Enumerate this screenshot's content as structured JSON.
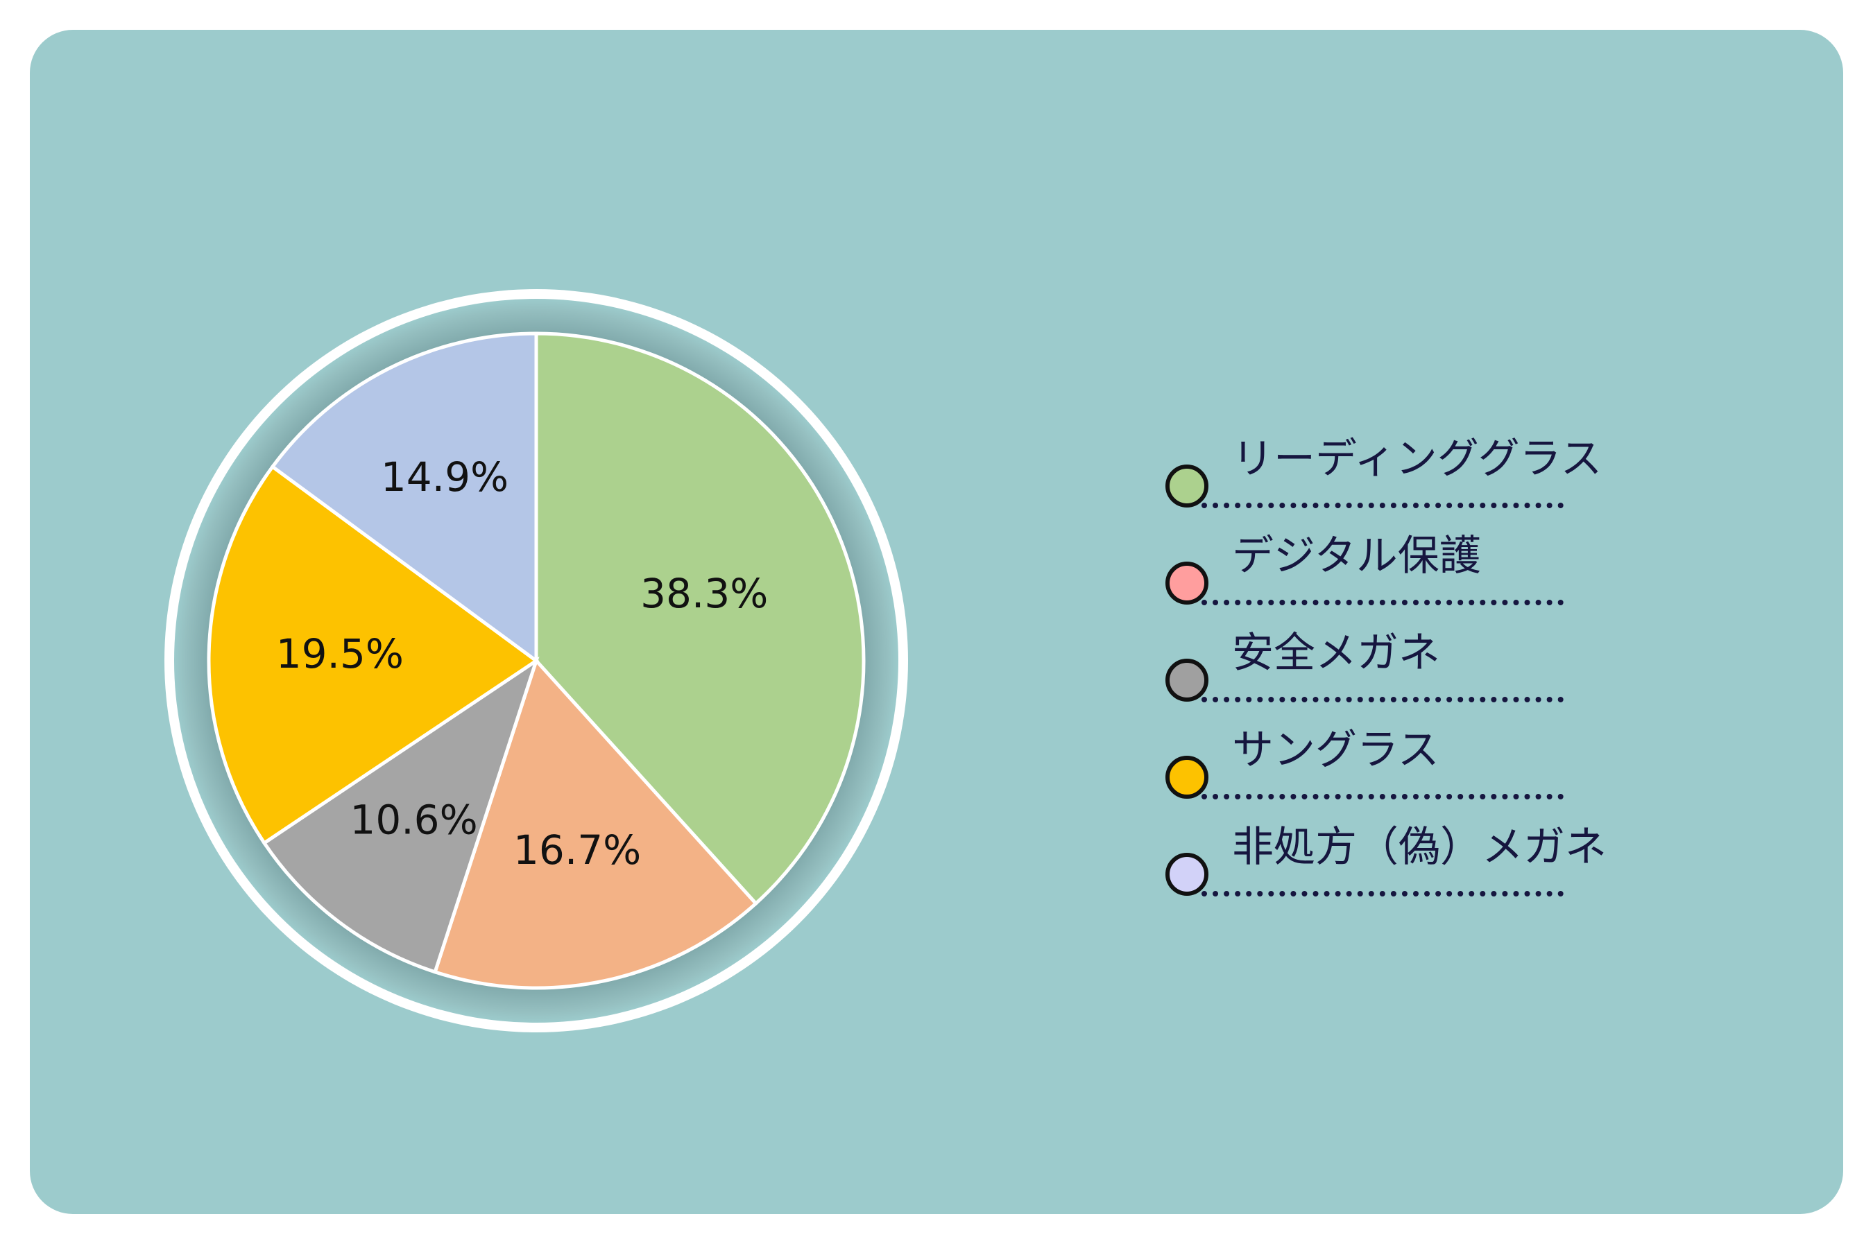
{
  "chart_data": {
    "type": "pie",
    "slices": [
      {
        "label": "リーディンググラス",
        "value": 38.3,
        "display": "38.3%",
        "color": "#acd18e"
      },
      {
        "label": "デジタル保護",
        "value": 16.7,
        "display": "16.7%",
        "color": "#f3b286"
      },
      {
        "label": "安全メガネ",
        "value": 10.6,
        "display": "10.6%",
        "color": "#a5a5a5"
      },
      {
        "label": "サングラス",
        "value": 19.5,
        "display": "19.5%",
        "color": "#fdc200"
      },
      {
        "label": "非処方（偽）メガネ",
        "value": 14.9,
        "display": "14.9%",
        "color": "#b4c6e7"
      }
    ],
    "legend": {
      "position": "right",
      "items": [
        {
          "label": "リーディンググラス",
          "color": "#acd18e"
        },
        {
          "label": "デジタル保護",
          "color": "#ff9e9e"
        },
        {
          "label": "安全メガネ",
          "color": "#a0a0a0"
        },
        {
          "label": "サングラス",
          "color": "#fdc200"
        },
        {
          "label": "非処方（偽）メガネ",
          "color": "#d2d2f8"
        }
      ]
    }
  },
  "colors": {
    "panel_background": "#9ccbcc",
    "slice_border": "#ffffff",
    "legend_text": "#16163f"
  }
}
